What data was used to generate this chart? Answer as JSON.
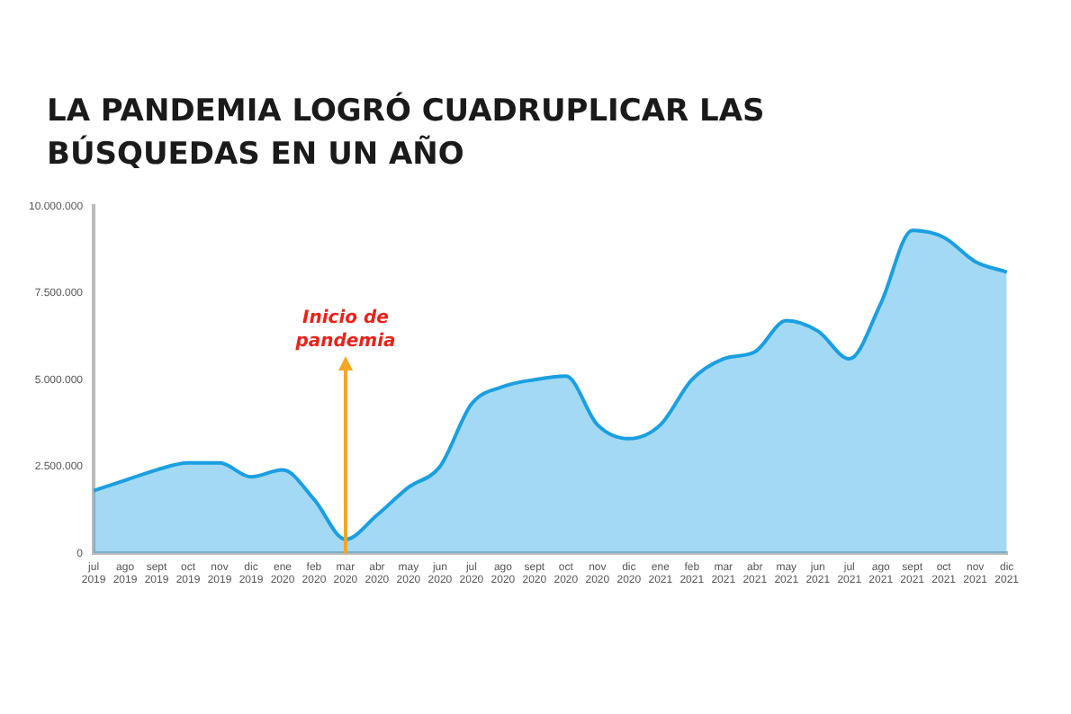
{
  "chart_data": {
    "type": "area",
    "title": "LA PANDEMIA LOGRÓ CUADRUPLICAR LAS BÚSQUEDAS EN UN AÑO",
    "categories": [
      "jul 2019",
      "ago 2019",
      "sept 2019",
      "oct 2019",
      "nov 2019",
      "dic 2019",
      "ene 2020",
      "feb 2020",
      "mar 2020",
      "abr 2020",
      "may 2020",
      "jun 2020",
      "jul 2020",
      "ago 2020",
      "sept 2020",
      "oct 2020",
      "nov 2020",
      "dic 2020",
      "ene 2021",
      "feb 2021",
      "mar 2021",
      "abr 2021",
      "may 2021",
      "jun 2021",
      "jul 2021",
      "ago 2021",
      "sept 2021",
      "oct 2021",
      "nov 2021",
      "dic 2021"
    ],
    "series": [
      {
        "color": "#1a9fe0",
        "values": [
          1800000,
          2100000,
          2400000,
          2600000,
          2600000,
          2200000,
          2400000,
          1550000,
          400000,
          1100000,
          1900000,
          2500000,
          4300000,
          4800000,
          5000000,
          5100000,
          3700000,
          3300000,
          3700000,
          5000000,
          5600000,
          5800000,
          6700000,
          6400000,
          5600000,
          7200000,
          9300000,
          9100000,
          8400000,
          8100000
        ]
      }
    ],
    "ylim": [
      0,
      10000000
    ],
    "yticks": [
      0,
      {
        "value": 2500000,
        "label": "2.500.000"
      },
      {
        "value": 5000000,
        "label": "5.000.000"
      },
      {
        "value": 7500000,
        "label": "7.500.000"
      },
      {
        "value": 10000000,
        "label": "10.000.000"
      }
    ],
    "ref_lines": [
      {
        "axis": "x",
        "value": "mar 2020",
        "label": "Inicio de pandemia",
        "color": "#f5a623"
      }
    ],
    "grid": false,
    "legend": false
  }
}
